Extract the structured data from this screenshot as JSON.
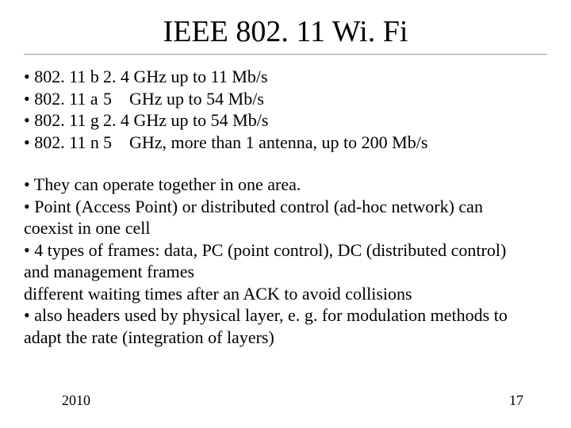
{
  "title": "IEEE 802. 11 Wi. Fi",
  "specs": [
    {
      "std": "• 802. 11 b",
      "desc": "2. 4 GHz up to 11 Mb/s"
    },
    {
      "std": "• 802. 11 a",
      "desc": "5    GHz up to 54 Mb/s"
    },
    {
      "std": "• 802. 11 g",
      "desc": "2. 4 GHz up to 54 Mb/s"
    },
    {
      "std": "• 802. 11 n",
      "desc": "5    GHz, more than 1 antenna, up to 200 Mb/s"
    }
  ],
  "notes": [
    "• They can operate together in one area.",
    "• Point (Access Point) or distributed control (ad-hoc network) can",
    "coexist in one cell",
    "• 4 types of frames: data, PC (point control), DC (distributed control)",
    "and management frames",
    "different waiting times after an ACK to avoid collisions",
    "• also headers used by physical layer, e. g. for modulation methods to",
    "adapt the rate (integration of layers)"
  ],
  "footer": {
    "year": "2010",
    "page": "17"
  },
  "style": {
    "background_color": "#ffffff",
    "text_color": "#000000",
    "divider_color": "#9a9a9a",
    "title_fontsize": 38,
    "body_fontsize": 22,
    "footer_fontsize": 18,
    "font_family": "Times New Roman"
  }
}
